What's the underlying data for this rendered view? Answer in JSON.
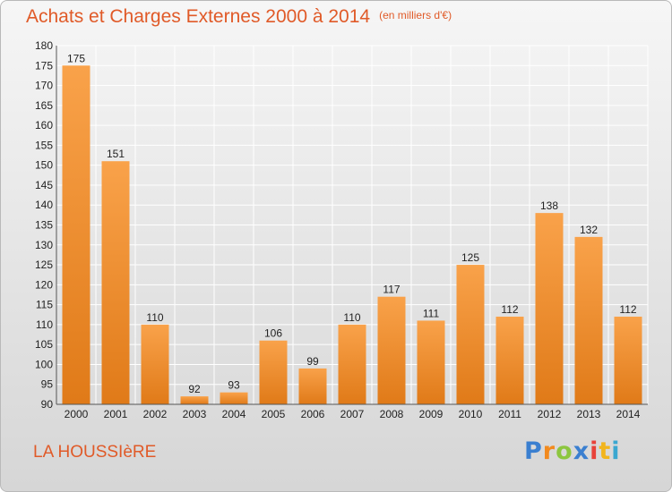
{
  "header": {
    "title": "Achats et Charges Externes 2000 à 2014",
    "subtitle": "(en milliers d'€)"
  },
  "footer": {
    "location": "LA HOUSSIèRE",
    "logo_letters": [
      "P",
      "r",
      "o",
      "x",
      "i",
      "t",
      "i"
    ]
  },
  "chart_data": {
    "type": "bar",
    "title": "Achats et Charges Externes 2000 à 2014",
    "subtitle": "(en milliers d'€)",
    "categories": [
      "2000",
      "2001",
      "2002",
      "2003",
      "2004",
      "2005",
      "2006",
      "2007",
      "2008",
      "2009",
      "2010",
      "2011",
      "2012",
      "2013",
      "2014"
    ],
    "values": [
      175,
      151,
      110,
      92,
      93,
      106,
      99,
      110,
      117,
      111,
      125,
      112,
      138,
      132,
      112
    ],
    "ylim": [
      90,
      180
    ],
    "ytick_step": 5,
    "grid": true,
    "legend": "none",
    "colors": {
      "bar_light": "#f9a24a",
      "bar_dark": "#e07a18",
      "grid": "#ffffff",
      "axis": "#555555"
    }
  }
}
